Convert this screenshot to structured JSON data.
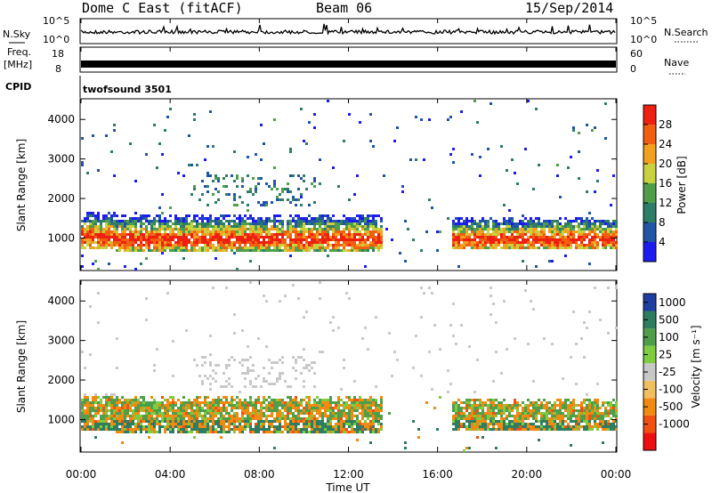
{
  "header": {
    "station": "Dome C East (fitACF)",
    "beam": "Beam 06",
    "date": "15/Sep/2014"
  },
  "noise_panel": {
    "left_label": "N.Sky",
    "right_label": "N.Search",
    "left_ticks": [
      "10^5",
      "10^0"
    ],
    "right_ticks": [
      "10^5",
      "10^0"
    ]
  },
  "freq_panel": {
    "left_label_line1": "Freq.",
    "left_label_line2": "[MHz]",
    "right_label": "Nave",
    "left_ticks": [
      "18",
      "8"
    ],
    "right_ticks": [
      "60",
      "0"
    ]
  },
  "cpid_panel": {
    "label": "CPID",
    "value": "twofsound 3501"
  },
  "chart_data": [
    {
      "type": "heatmap",
      "panel": "power",
      "ylabel": "Slant Range [km]",
      "ylim": [
        200,
        4500
      ],
      "yticks": [
        "1000",
        "2000",
        "3000",
        "4000"
      ],
      "colorbar_label": "Power [dB]",
      "colorbar_ticks": [
        "4",
        "8",
        "12",
        "16",
        "20",
        "24",
        "28"
      ],
      "colors": [
        "#1c1cf0",
        "#1f55a4",
        "#2e7d66",
        "#4f9f4a",
        "#c8d240",
        "#f2a020",
        "#f06010",
        "#ee2010"
      ]
    },
    {
      "type": "heatmap",
      "panel": "velocity",
      "ylabel": "Slant Range [km]",
      "ylim": [
        200,
        4500
      ],
      "yticks": [
        "1000",
        "2000",
        "3000",
        "4000"
      ],
      "colorbar_label": "Velocity [m s⁻¹]",
      "colorbar_ticks": [
        "1000",
        "500",
        "100",
        "25",
        "-25",
        "-100",
        "-500",
        "-1000"
      ],
      "colors": [
        "#1f3fa0",
        "#2e7d60",
        "#4f9f4a",
        "#7fcc40",
        "#c8c8c8",
        "#f0c060",
        "#f08a10",
        "#f05010",
        "#ee1010"
      ]
    }
  ],
  "x_axis": {
    "label": "Time UT",
    "ticks": [
      "00:00",
      "04:00",
      "08:00",
      "12:00",
      "16:00",
      "20:00",
      "00:00"
    ]
  }
}
